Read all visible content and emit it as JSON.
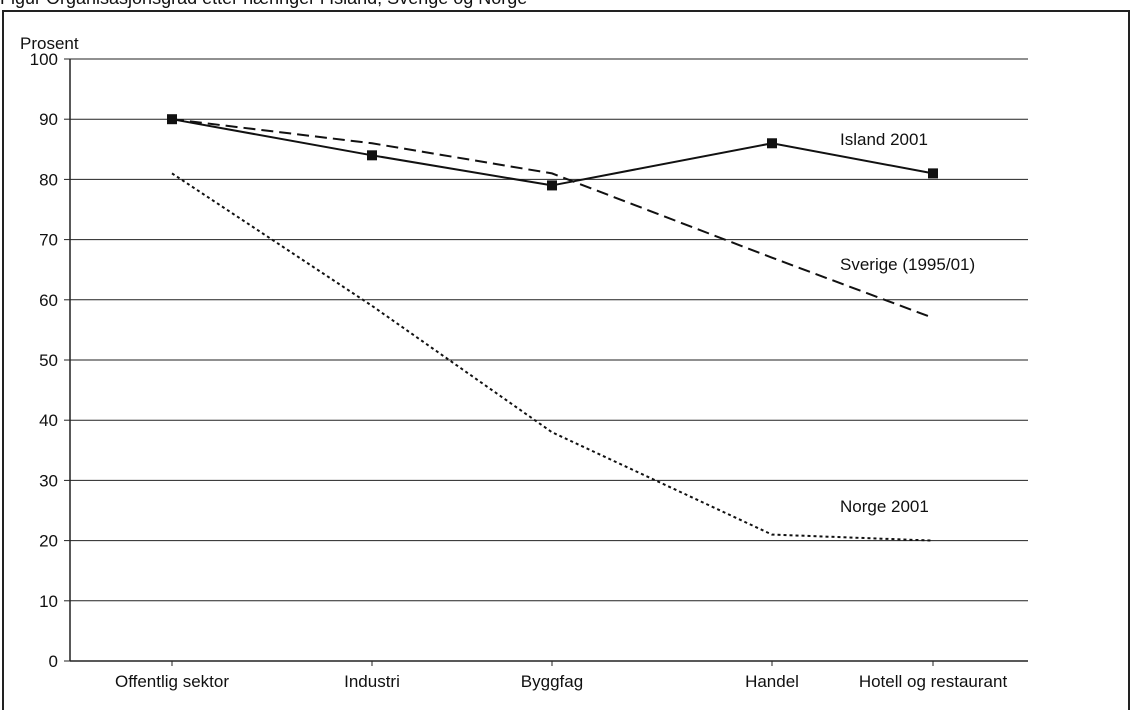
{
  "caption": "Figur  Organisasjonsgrad etter næringer i Island, Sverige og Norge",
  "chart_data": {
    "type": "line",
    "title": "",
    "ylabel": "Prosent",
    "xlabel": "",
    "ylim": [
      0,
      100
    ],
    "yticks": [
      0,
      10,
      20,
      30,
      40,
      50,
      60,
      70,
      80,
      90,
      100
    ],
    "grid": true,
    "categories": [
      "Offentlig sektor",
      "Industri",
      "Byggfag",
      "Handel",
      "Hotell og restaurant"
    ],
    "series": [
      {
        "name": "Island 2001",
        "values": [
          90,
          84,
          79,
          86,
          81
        ],
        "style": "solid",
        "markers": "square",
        "color": "#111111"
      },
      {
        "name": "Sverige (1995/01)",
        "values": [
          90,
          86,
          81,
          67,
          57
        ],
        "style": "dashed",
        "color": "#111111"
      },
      {
        "name": "Norge 2001",
        "values": [
          81,
          59,
          38,
          21,
          20
        ],
        "style": "dotted",
        "color": "#111111"
      }
    ]
  }
}
